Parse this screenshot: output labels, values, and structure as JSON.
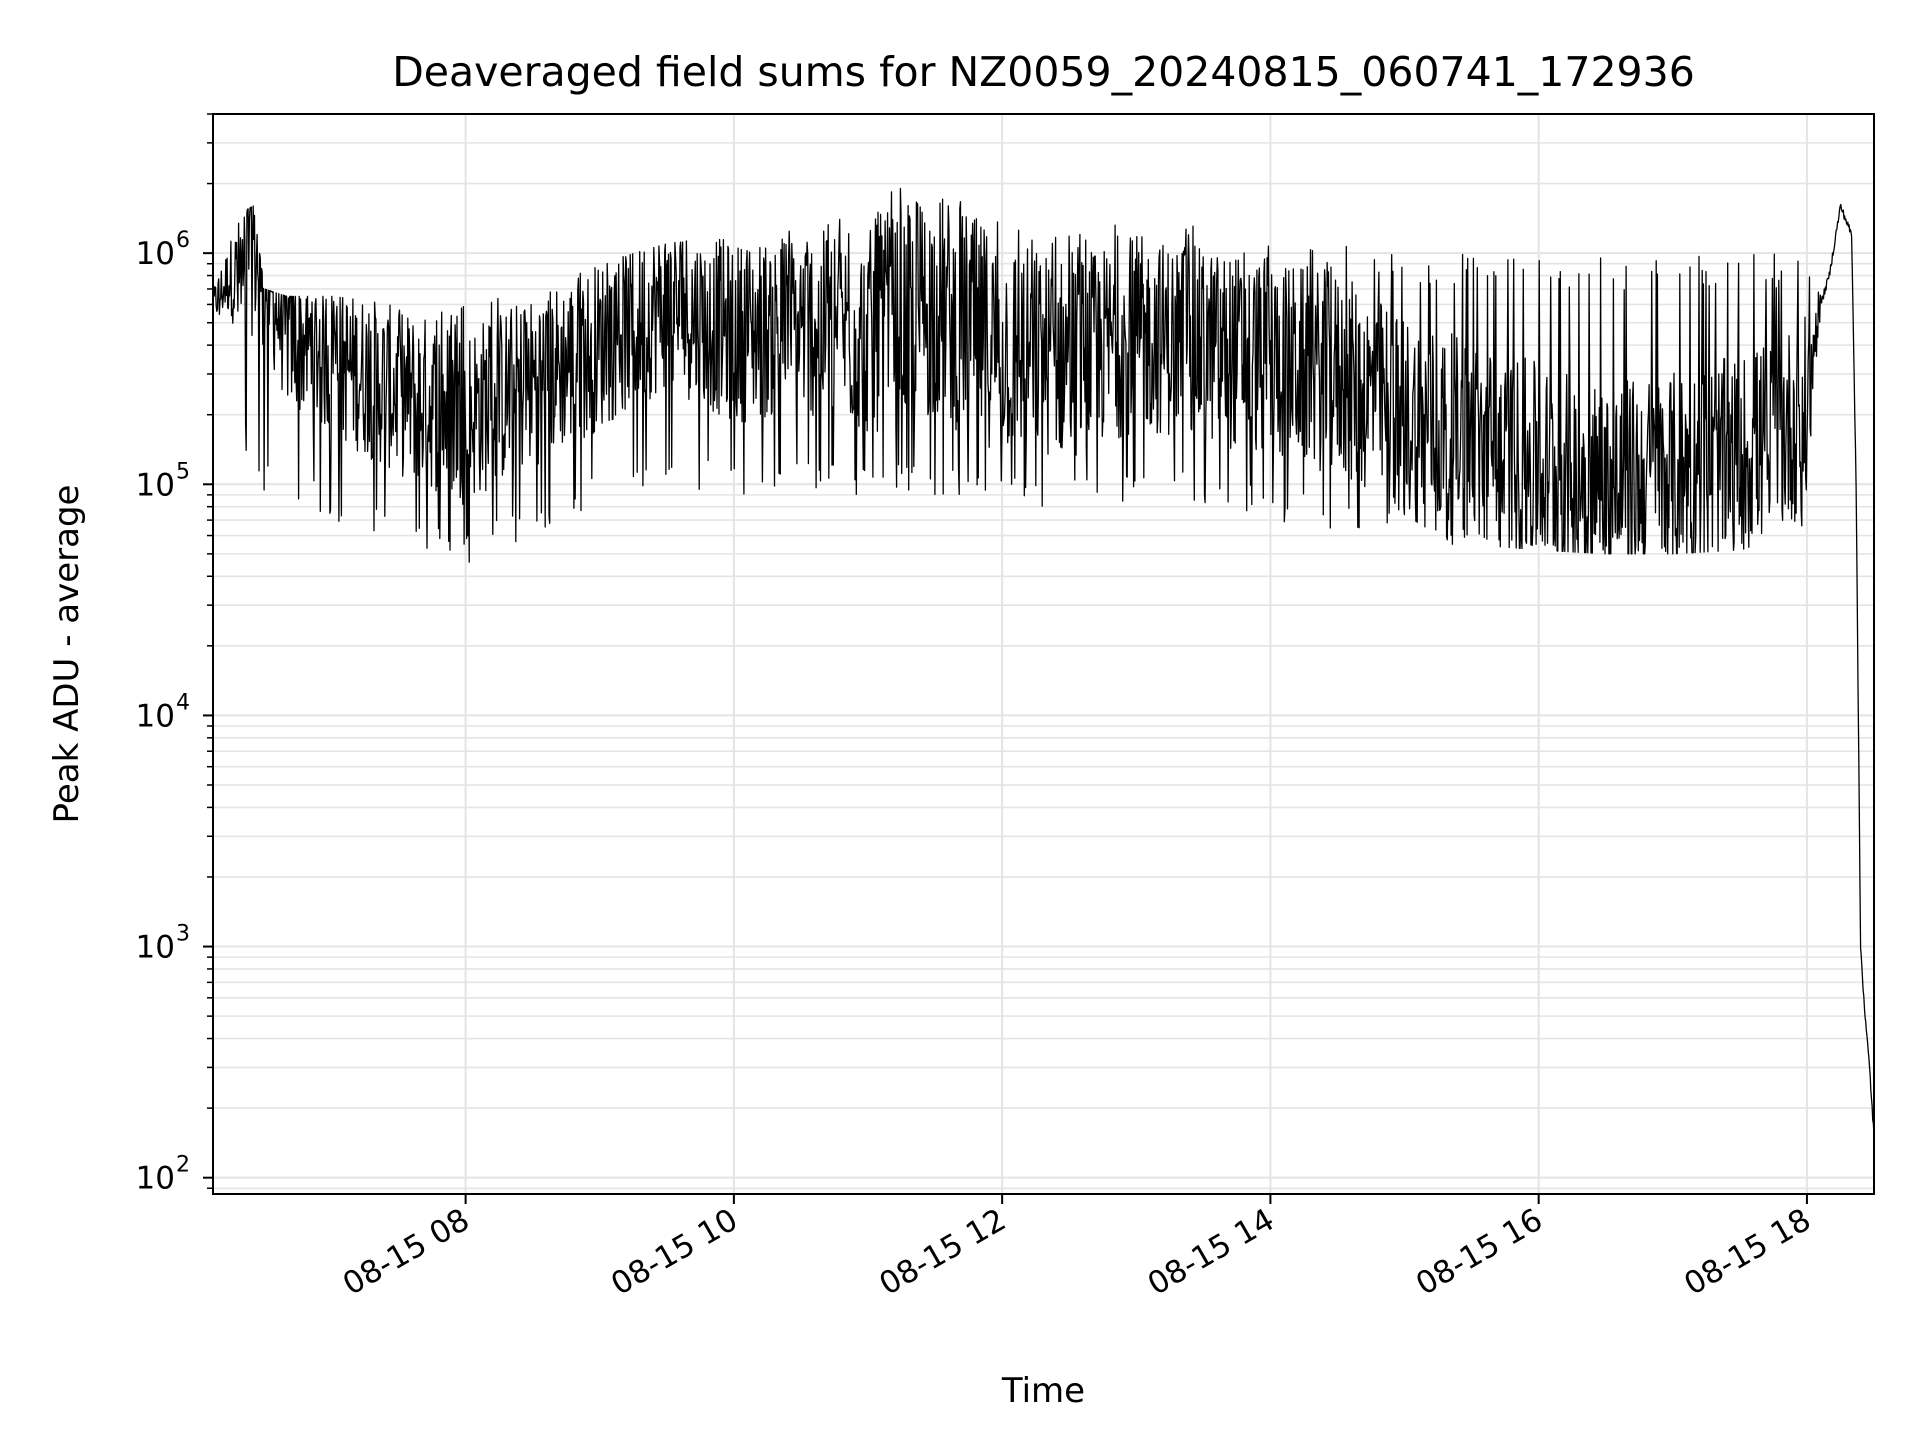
{
  "chart_data": {
    "type": "line",
    "title": "Deaveraged field sums for NZ0059_20240815_060741_172936",
    "xlabel": "Time",
    "ylabel": "Peak ADU - average",
    "yscale": "log",
    "grid": true,
    "line_color": "#000000",
    "xlim": [
      "2024-08-15 06:07",
      "2024-08-15 18:30"
    ],
    "ylim": [
      85,
      4000000
    ],
    "x_ticks": [
      "08-15 08",
      "08-15 10",
      "08-15 12",
      "08-15 14",
      "08-15 16",
      "08-15 18"
    ],
    "y_ticks": [
      {
        "base": "10",
        "exp": "2"
      },
      {
        "base": "10",
        "exp": "3"
      },
      {
        "base": "10",
        "exp": "4"
      },
      {
        "base": "10",
        "exp": "5"
      },
      {
        "base": "10",
        "exp": "6"
      }
    ],
    "series": [
      {
        "x": [
          "2024-08-15 06:07",
          "2024-08-15 06:15",
          "2024-08-15 06:20",
          "2024-08-15 06:25",
          "2024-08-15 06:30",
          "2024-08-15 06:40",
          "2024-08-15 07:00",
          "2024-08-15 07:30",
          "2024-08-15 08:00",
          "2024-08-15 08:30",
          "2024-08-15 09:00",
          "2024-08-15 09:30",
          "2024-08-15 10:00",
          "2024-08-15 10:30",
          "2024-08-15 11:00",
          "2024-08-15 11:30",
          "2024-08-15 12:00",
          "2024-08-15 12:30",
          "2024-08-15 13:00",
          "2024-08-15 13:30",
          "2024-08-15 14:00",
          "2024-08-15 14:30",
          "2024-08-15 15:00",
          "2024-08-15 15:30",
          "2024-08-15 16:00",
          "2024-08-15 16:30",
          "2024-08-15 17:00",
          "2024-08-15 17:30",
          "2024-08-15 18:00",
          "2024-08-15 18:05",
          "2024-08-15 18:10",
          "2024-08-15 18:15",
          "2024-08-15 18:20",
          "2024-08-15 18:22",
          "2024-08-15 18:24",
          "2024-08-15 18:26",
          "2024-08-15 18:28",
          "2024-08-15 18:30"
        ],
        "values": [
          600000,
          800000,
          700000,
          1200000,
          800000,
          450000,
          350000,
          250000,
          200000,
          280000,
          400000,
          600000,
          450000,
          500000,
          450000,
          600000,
          400000,
          350000,
          450000,
          400000,
          350000,
          300000,
          200000,
          150000,
          120000,
          100000,
          110000,
          130000,
          200000,
          550000,
          800000,
          1600000,
          1200000,
          100000,
          1000,
          500,
          300,
          150
        ],
        "envelope_low": [
          500000,
          400000,
          150000,
          100000,
          90000,
          80000,
          70000,
          55000,
          45000,
          60000,
          80000,
          100000,
          90000,
          95000,
          85000,
          90000,
          80000,
          75000,
          85000,
          80000,
          70000,
          60000,
          55000,
          55000,
          52000,
          50000,
          50000,
          52000,
          60000,
          450000,
          600000,
          1200000,
          900000,
          90000,
          900,
          450,
          250,
          140
        ],
        "envelope_high": [
          800000,
          1200000,
          1500000,
          1600000,
          700000,
          650000,
          650000,
          600000,
          600000,
          700000,
          900000,
          1100000,
          1200000,
          1300000,
          1600000,
          2400000,
          1800000,
          1300000,
          1400000,
          1300000,
          1200000,
          1100000,
          1000000,
          1000000,
          1000000,
          950000,
          950000,
          1000000,
          1000000,
          800000,
          1000000,
          1800000,
          1500000,
          120000,
          1100,
          600,
          350,
          200
        ]
      }
    ]
  }
}
